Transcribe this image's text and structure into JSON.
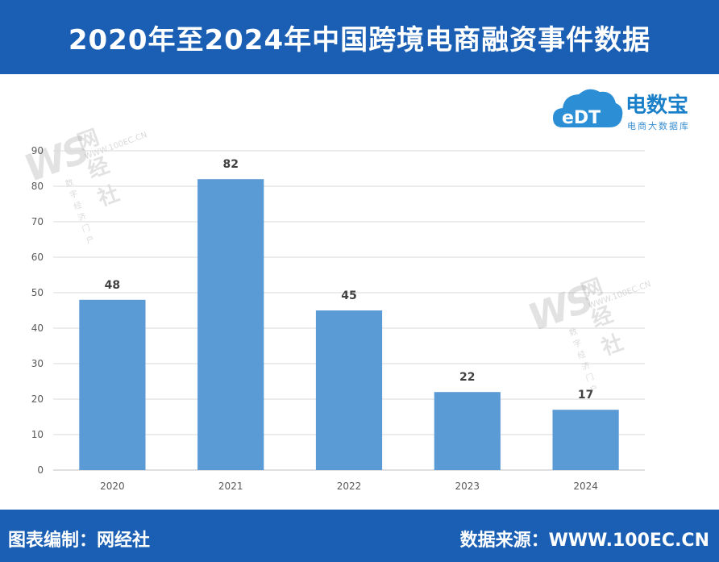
{
  "header": {
    "title": "2020年至2024年中国跨境电商融资事件数据"
  },
  "footer": {
    "credit": "图表编制：网经社",
    "source": "数据来源：WWW.100EC.CN"
  },
  "logo": {
    "brand": "电数宝",
    "sub": "电商大数据库",
    "mark": "eDT"
  },
  "watermark": {
    "mark": "WS",
    "name": "网经社",
    "url": "WWW.100EC.CN",
    "sub": "数字经济门户"
  },
  "colors": {
    "header_bg": "#1a5fb4",
    "bar": "#5b9bd5",
    "grid": "#d9d9d9",
    "axis_text": "#595959"
  },
  "chart_data": {
    "type": "bar",
    "categories": [
      "2020",
      "2021",
      "2022",
      "2023",
      "2024"
    ],
    "values": [
      48,
      82,
      45,
      22,
      17
    ],
    "title": "",
    "xlabel": "",
    "ylabel": "",
    "ylim": [
      0,
      90
    ],
    "yticks": [
      0,
      10,
      20,
      30,
      40,
      50,
      60,
      70,
      80,
      90
    ],
    "grid": true,
    "data_labels": true
  }
}
